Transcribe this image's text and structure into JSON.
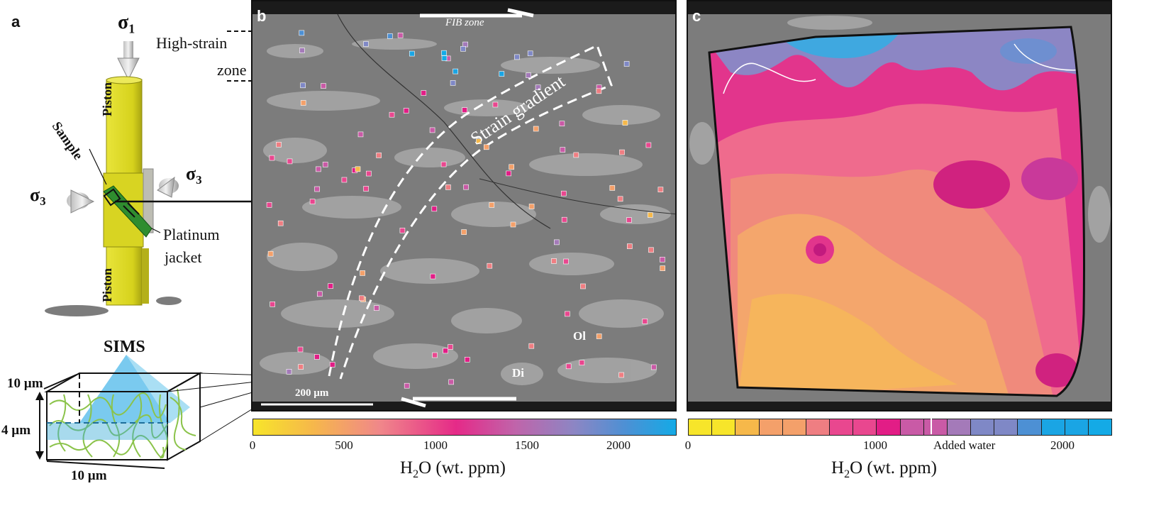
{
  "panel_a": {
    "label": "a",
    "sigma": "σ",
    "sigma1_sub": "1",
    "sigma3_sub": "3",
    "piston_top": "Piston",
    "piston_bottom": "Piston",
    "sample": "Sample",
    "platinum": "Platinum",
    "jacket": "jacket",
    "high_strain_1": "High-strain",
    "high_strain_2": "zone",
    "sims": "SIMS",
    "dim_10_top": "10 µm",
    "dim_4": "4 µm",
    "dim_10_bottom": "10 µm"
  },
  "panel_b": {
    "label": "b",
    "fib_zone": "FIB zone",
    "strain_gradient": "Strain gradient",
    "mineral_ol": "Ol",
    "mineral_di": "Di",
    "scale_bar": "200 µm"
  },
  "panel_c": {
    "label": "c",
    "added_water": "Added water"
  },
  "colorbar_b": {
    "ticks": [
      "0",
      "500",
      "1000",
      "1500",
      "2000"
    ],
    "title_main": "H",
    "title_sub": "2",
    "title_rest": "O (wt. ppm)"
  },
  "colorbar_c": {
    "ticks": [
      "0",
      "1000",
      "2000"
    ],
    "title_main": "H",
    "title_sub": "2",
    "title_rest": "O (wt. ppm)"
  },
  "colors": {
    "sem_background": "#7c7c7c",
    "olivine_grey": "#6b6b6b",
    "diopside_grey": "#a4a4a4",
    "piston_yellow": "#d8d422",
    "sims_blue": "#5bc3ea",
    "grain_green": "#8bc34a"
  },
  "colormap": [
    "#f7e52a",
    "#f6b84a",
    "#f4a06a",
    "#ef7e82",
    "#e9478f",
    "#e21d86",
    "#c95aa6",
    "#a47ab9",
    "#7f88c6",
    "#4d90d4",
    "#1aa5e4",
    "#14aae6"
  ]
}
